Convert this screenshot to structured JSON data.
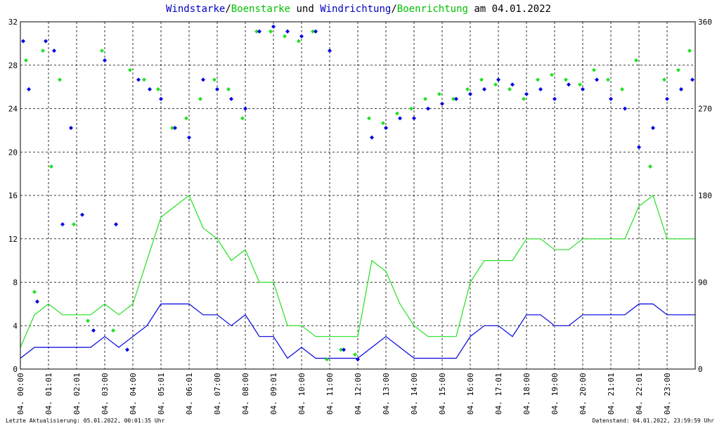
{
  "title": {
    "part1": "Windstarke",
    "sep1": "/",
    "part2": "Boenstarke",
    "part3": " und ",
    "part4": "Windrichtung",
    "sep2": "/",
    "part5": "Boenrichtung",
    "part6": " am 04.01.2022"
  },
  "footer": {
    "left": "Letzte Aktualisierung: 05.01.2022, 00:01:35 Uhr",
    "right": "Datenstand: 04.01.2022, 23:59:59 Uhr"
  },
  "colors": {
    "wind": "#0000e0",
    "gust": "#22e022",
    "grid": "#000000",
    "title_blue": "#0000c0",
    "title_green": "#00c000"
  },
  "chart_data": {
    "type": "line",
    "x_unit": "hour of day",
    "x_tick_labels": [
      "04. 00:00",
      "04. 01:01",
      "04. 02:01",
      "04. 03:00",
      "04. 04:00",
      "04. 05:01",
      "04. 06:01",
      "04. 07:00",
      "04. 08:00",
      "04. 09:01",
      "04. 10:00",
      "04. 11:00",
      "04. 12:00",
      "04. 13:00",
      "04. 14:00",
      "04. 15:00",
      "04. 16:00",
      "04. 17:01",
      "04. 18:00",
      "04. 19:00",
      "04. 20:00",
      "04. 21:01",
      "04. 22:01",
      "04. 23:00"
    ],
    "y_left": {
      "ticks": [
        0,
        4,
        8,
        12,
        16,
        20,
        24,
        28,
        32
      ],
      "range": [
        0,
        32
      ]
    },
    "y_right": {
      "ticks": [
        0,
        90,
        180,
        270,
        360
      ],
      "range": [
        0,
        360
      ]
    },
    "grid": true,
    "series": [
      {
        "role": "wind speed (line, left axis)",
        "x": [
          0,
          0.5,
          1,
          1.5,
          2,
          2.5,
          3,
          3.5,
          4,
          4.5,
          5,
          5.5,
          6,
          6.5,
          7,
          7.5,
          8,
          8.5,
          9,
          9.5,
          10,
          10.5,
          11,
          11.5,
          12,
          12.5,
          13,
          13.5,
          14,
          14.5,
          15,
          15.5,
          16,
          16.5,
          17,
          17.5,
          18,
          18.5,
          19,
          19.5,
          20,
          20.5,
          21,
          21.5,
          22,
          22.5,
          23,
          23.5,
          24
        ],
        "y": [
          1,
          2,
          2,
          2,
          2,
          2,
          3,
          2,
          3,
          4,
          6,
          6,
          6,
          5,
          5,
          4,
          5,
          3,
          3,
          1,
          2,
          1,
          1,
          1,
          1,
          2,
          3,
          2,
          1,
          1,
          1,
          1,
          3,
          4,
          4,
          3,
          5,
          5,
          4,
          4,
          5,
          5,
          5,
          5,
          6,
          6,
          5,
          5,
          5
        ]
      },
      {
        "role": "gust speed (line, left axis)",
        "x": [
          0,
          0.5,
          1,
          1.5,
          2,
          2.5,
          3,
          3.5,
          4,
          4.5,
          5,
          5.5,
          6,
          6.5,
          7,
          7.5,
          8,
          8.5,
          9,
          9.5,
          10,
          10.5,
          11,
          11.5,
          12,
          12.5,
          13,
          13.5,
          14,
          14.5,
          15,
          15.5,
          16,
          16.5,
          17,
          17.5,
          18,
          18.5,
          19,
          19.5,
          20,
          20.5,
          21,
          21.5,
          22,
          22.5,
          23,
          23.5,
          24
        ],
        "y": [
          2,
          5,
          6,
          5,
          5,
          5,
          6,
          5,
          6,
          10,
          14,
          15,
          16,
          13,
          12,
          10,
          11,
          8,
          8,
          4,
          4,
          3,
          3,
          3,
          3,
          10,
          9,
          6,
          4,
          3,
          3,
          3,
          8,
          10,
          10,
          10,
          12,
          12,
          11,
          11,
          12,
          12,
          12,
          12,
          15,
          16,
          12,
          12,
          12
        ]
      },
      {
        "role": "wind direction (points, right axis)",
        "x": [
          0.1,
          0.3,
          0.6,
          0.9,
          1.2,
          1.5,
          1.8,
          2.2,
          2.6,
          3.0,
          3.4,
          3.8,
          4.2,
          4.6,
          5.0,
          5.5,
          6.0,
          6.5,
          7.0,
          7.5,
          8.0,
          8.5,
          9.0,
          9.5,
          10.0,
          10.5,
          11.0,
          11.5,
          12.0,
          12.5,
          13.0,
          13.5,
          14.0,
          14.5,
          15.0,
          15.5,
          16.0,
          16.5,
          17.0,
          17.5,
          18.0,
          18.5,
          19.0,
          19.5,
          20.0,
          20.5,
          21.0,
          21.5,
          22.0,
          22.5,
          23.0,
          23.5,
          23.9
        ],
        "y": [
          340,
          290,
          70,
          340,
          330,
          150,
          250,
          160,
          40,
          320,
          150,
          20,
          300,
          290,
          280,
          250,
          240,
          300,
          290,
          280,
          270,
          350,
          355,
          350,
          345,
          350,
          330,
          20,
          10,
          240,
          250,
          260,
          260,
          270,
          275,
          280,
          285,
          290,
          300,
          295,
          285,
          290,
          280,
          295,
          290,
          300,
          280,
          270,
          230,
          250,
          280,
          290,
          300
        ]
      },
      {
        "role": "gust direction (points, right axis)",
        "x": [
          0.2,
          0.5,
          0.8,
          1.1,
          1.4,
          1.9,
          2.4,
          2.9,
          3.3,
          3.9,
          4.4,
          4.9,
          5.4,
          5.9,
          6.4,
          6.9,
          7.4,
          7.9,
          8.4,
          8.9,
          9.4,
          9.9,
          10.4,
          10.9,
          11.4,
          11.9,
          12.4,
          12.9,
          13.4,
          13.9,
          14.4,
          14.9,
          15.4,
          15.9,
          16.4,
          16.9,
          17.4,
          17.9,
          18.4,
          18.9,
          19.4,
          19.9,
          20.4,
          20.9,
          21.4,
          21.9,
          22.4,
          22.9,
          23.4,
          23.8
        ],
        "y": [
          320,
          80,
          330,
          210,
          300,
          150,
          50,
          330,
          40,
          310,
          300,
          290,
          250,
          260,
          280,
          300,
          290,
          260,
          350,
          350,
          345,
          340,
          350,
          10,
          20,
          15,
          260,
          255,
          265,
          270,
          280,
          285,
          280,
          290,
          300,
          295,
          290,
          280,
          300,
          305,
          300,
          295,
          310,
          300,
          290,
          320,
          210,
          300,
          310,
          330
        ]
      }
    ]
  }
}
